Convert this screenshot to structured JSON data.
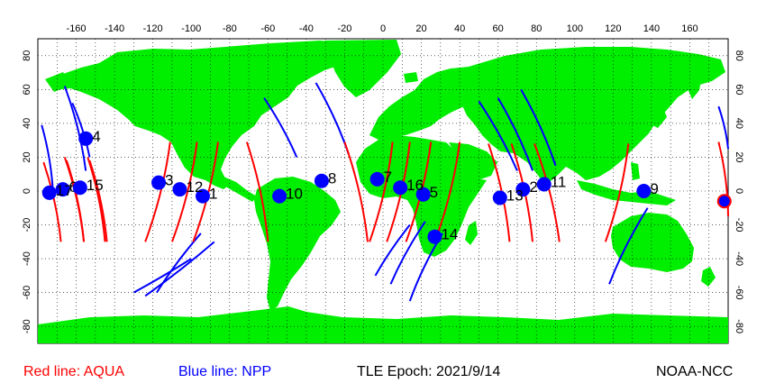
{
  "map": {
    "lon_range": [
      -180,
      180
    ],
    "lat_range": [
      -90,
      90
    ],
    "lon_ticks_top": [
      -160,
      -140,
      -120,
      -100,
      -80,
      -60,
      -40,
      -20,
      0,
      20,
      40,
      60,
      80,
      100,
      120,
      140,
      160
    ],
    "lat_ticks": [
      80,
      60,
      40,
      20,
      0,
      -20,
      -40,
      -60,
      -80
    ],
    "lon_grid_step": 10,
    "lat_grid_step": 20,
    "grid": true,
    "colors": {
      "land": "#00ee00",
      "aqua": "#ff0000",
      "npp": "#0000ff",
      "marker": "#0000ff",
      "grid": "#000000"
    }
  },
  "legend": {
    "aqua": "Red line: AQUA",
    "npp": "Blue line: NPP"
  },
  "epoch": "TLE Epoch: 2021/9/14",
  "source": "NOAA-NCC",
  "tracks": {
    "aqua": [
      [
        [
          -177,
          17
        ],
        [
          -168,
          -30
        ]
      ],
      [
        [
          -165,
          18
        ],
        [
          -156,
          -30
        ]
      ],
      [
        [
          -153,
          18
        ],
        [
          -144,
          -30
        ]
      ],
      [
        [
          -166,
          20
        ],
        [
          -156,
          -30
        ]
      ],
      [
        [
          -154,
          20
        ],
        [
          -145,
          -30
        ]
      ],
      [
        [
          -111,
          29
        ],
        [
          -124,
          -30
        ]
      ],
      [
        [
          -97,
          29
        ],
        [
          -110,
          -30
        ]
      ],
      [
        [
          -86,
          29
        ],
        [
          -99,
          -30
        ]
      ],
      [
        [
          -71,
          29
        ],
        [
          -60,
          -30
        ]
      ],
      [
        [
          -20,
          29
        ],
        [
          -8,
          -30
        ]
      ],
      [
        [
          5,
          29
        ],
        [
          -7,
          -30
        ]
      ],
      [
        [
          14,
          29
        ],
        [
          2,
          -30
        ]
      ],
      [
        [
          25,
          29
        ],
        [
          12,
          -30
        ]
      ],
      [
        [
          40,
          29
        ],
        [
          27,
          -30
        ]
      ],
      [
        [
          55,
          28
        ],
        [
          66,
          -30
        ]
      ],
      [
        [
          67,
          28
        ],
        [
          78,
          -30
        ]
      ],
      [
        [
          79,
          28
        ],
        [
          92,
          -30
        ]
      ],
      [
        [
          128,
          28
        ],
        [
          116,
          -30
        ]
      ],
      [
        [
          175,
          29
        ],
        [
          180,
          -15
        ]
      ]
    ],
    "npp": [
      [
        [
          -178,
          39
        ],
        [
          -172,
          -3
        ]
      ],
      [
        [
          -166,
          62
        ],
        [
          -155,
          12
        ]
      ],
      [
        [
          -162,
          52
        ],
        [
          -153,
          20
        ]
      ],
      [
        [
          -100,
          -40
        ],
        [
          -130,
          -60
        ]
      ],
      [
        [
          -88,
          -30
        ],
        [
          -124,
          -62
        ]
      ],
      [
        [
          -118,
          -60
        ],
        [
          -95,
          -25
        ]
      ],
      [
        [
          -62,
          55
        ],
        [
          -45,
          20
        ]
      ],
      [
        [
          -35,
          64
        ],
        [
          -18,
          22
        ]
      ],
      [
        [
          -4,
          -50
        ],
        [
          14,
          -20
        ]
      ],
      [
        [
          4,
          -55
        ],
        [
          22,
          -18
        ]
      ],
      [
        [
          14,
          -65
        ],
        [
          31,
          -25
        ]
      ],
      [
        [
          50,
          53
        ],
        [
          70,
          12
        ]
      ],
      [
        [
          60,
          55
        ],
        [
          78,
          12
        ]
      ],
      [
        [
          72,
          60
        ],
        [
          90,
          15
        ]
      ],
      [
        [
          118,
          -55
        ],
        [
          138,
          -10
        ]
      ],
      [
        [
          175,
          50
        ],
        [
          180,
          25
        ]
      ]
    ]
  },
  "satellites": [
    {
      "id": "1",
      "lon": -94,
      "lat": -3
    },
    {
      "id": "2",
      "lon": 73,
      "lat": 1
    },
    {
      "id": "3",
      "lon": -117,
      "lat": 5
    },
    {
      "id": "4",
      "lon": -155,
      "lat": 31
    },
    {
      "id": "5",
      "lon": 21,
      "lat": -2
    },
    {
      "id": "6",
      "lon": -167,
      "lat": 1
    },
    {
      "id": "7",
      "lon": -3,
      "lat": 7
    },
    {
      "id": "8",
      "lon": -32,
      "lat": 6
    },
    {
      "id": "9",
      "lon": 136,
      "lat": 0
    },
    {
      "id": "10",
      "lon": -54,
      "lat": -3
    },
    {
      "id": "11",
      "lon": 84,
      "lat": 4
    },
    {
      "id": "12",
      "lon": -106,
      "lat": 1
    },
    {
      "id": "13",
      "lon": 61,
      "lat": -4
    },
    {
      "id": "14",
      "lon": 27,
      "lat": -27
    },
    {
      "id": "15",
      "lon": -158,
      "lat": 2
    },
    {
      "id": "16",
      "lon": 9,
      "lat": 2
    },
    {
      "id": "17",
      "lon": -174,
      "lat": -1
    },
    {
      "id": "",
      "lon": 178,
      "lat": -6
    }
  ]
}
